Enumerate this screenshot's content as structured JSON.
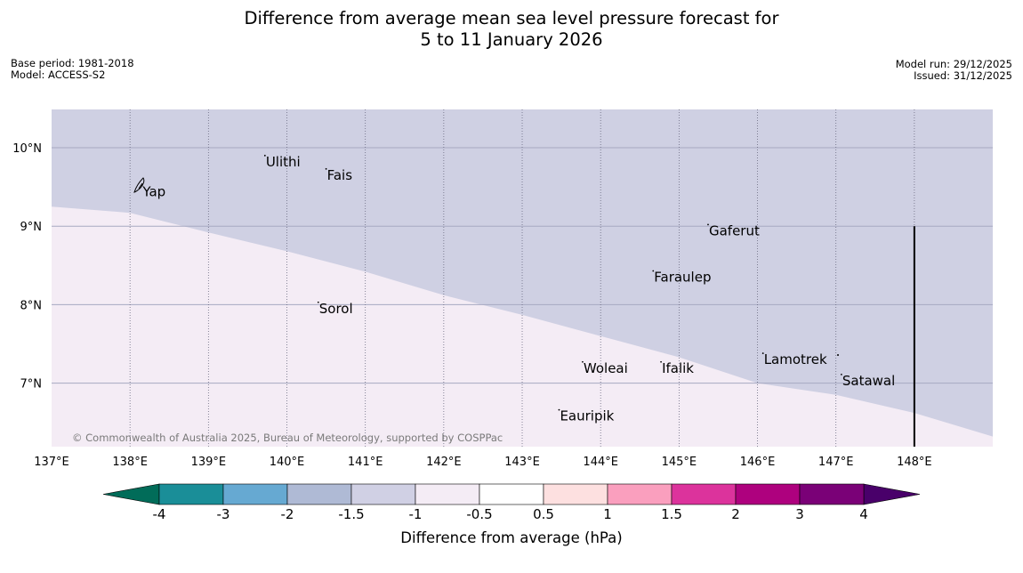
{
  "title": {
    "line1": "Difference from average mean sea level pressure forecast for",
    "line2": "5 to 11 January 2026"
  },
  "meta_left": {
    "base_period": "Base period: 1981-2018",
    "model": "Model: ACCESS-S2"
  },
  "meta_right": {
    "model_run": "Model run: 29/12/2025",
    "issued": "Issued: 31/12/2025"
  },
  "map": {
    "lon_range": [
      137.0,
      149.0
    ],
    "lat_range": [
      6.2,
      10.5
    ],
    "lon_ticks": [
      {
        "value": 137,
        "label": "137°E"
      },
      {
        "value": 138,
        "label": "138°E"
      },
      {
        "value": 139,
        "label": "139°E"
      },
      {
        "value": 140,
        "label": "140°E"
      },
      {
        "value": 141,
        "label": "141°E"
      },
      {
        "value": 142,
        "label": "142°E"
      },
      {
        "value": 143,
        "label": "143°E"
      },
      {
        "value": 144,
        "label": "144°E"
      },
      {
        "value": 145,
        "label": "145°E"
      },
      {
        "value": 146,
        "label": "146°E"
      },
      {
        "value": 147,
        "label": "147°E"
      },
      {
        "value": 148,
        "label": "148°E"
      }
    ],
    "lat_ticks": [
      {
        "value": 10,
        "label": "10°N"
      },
      {
        "value": 9,
        "label": "9°N"
      },
      {
        "value": 8,
        "label": "8°N"
      },
      {
        "value": 7,
        "label": "7°N"
      }
    ],
    "regions": [
      {
        "name": "-1.5 to -1 hPa",
        "color": "#cfd0e3"
      },
      {
        "name": "-1 to -0.5 hPa",
        "color": "#f4ecf5"
      }
    ],
    "boundary": [
      [
        137.0,
        9.25
      ],
      [
        138.0,
        9.17
      ],
      [
        139.0,
        8.92
      ],
      [
        140.0,
        8.68
      ],
      [
        141.0,
        8.42
      ],
      [
        142.0,
        8.12
      ],
      [
        143.0,
        7.87
      ],
      [
        144.0,
        7.6
      ],
      [
        145.0,
        7.33
      ],
      [
        146.0,
        7.0
      ],
      [
        147.0,
        6.85
      ],
      [
        148.0,
        6.62
      ],
      [
        149.0,
        6.32
      ]
    ],
    "islands": [
      {
        "name": "Yap",
        "lon": 138.15,
        "lat": 9.52
      },
      {
        "name": "Ulithi",
        "lon": 139.72,
        "lat": 9.9
      },
      {
        "name": "Fais",
        "lon": 140.5,
        "lat": 9.73
      },
      {
        "name": "Gaferut",
        "lon": 145.37,
        "lat": 9.02
      },
      {
        "name": "Faraulep",
        "lon": 144.67,
        "lat": 8.43
      },
      {
        "name": "Sorol",
        "lon": 140.4,
        "lat": 8.03
      },
      {
        "name": "Lamotrek",
        "lon": 146.07,
        "lat": 7.38
      },
      {
        "name": "Satawal",
        "lon": 147.07,
        "lat": 7.11
      },
      {
        "name": "Woleai",
        "lon": 143.77,
        "lat": 7.27
      },
      {
        "name": "Ifalik",
        "lon": 144.77,
        "lat": 7.27
      },
      {
        "name": "Eauripik",
        "lon": 143.47,
        "lat": 6.66
      }
    ],
    "divider_lon": 148.0,
    "divider_lat_top": 9.0,
    "copyright": "© Commonwealth of Australia 2025, Bureau of Meteorology, supported by COSPPac"
  },
  "legend": {
    "title": "Difference from average (hPa)",
    "boundaries": [
      "-4",
      "-3",
      "-2",
      "-1.5",
      "-1",
      "-0.5",
      "0.5",
      "1",
      "1.5",
      "2",
      "3",
      "4"
    ],
    "colors": [
      "#1a8e98",
      "#66a9d2",
      "#afbad5",
      "#d0d0e4",
      "#f4ecf5",
      "#ffffff",
      "#fde0e0",
      "#fa9fbe",
      "#dc339c",
      "#ae017e",
      "#7a0177"
    ],
    "low_extend_color": "#016c59",
    "high_extend_color": "#49006a"
  }
}
